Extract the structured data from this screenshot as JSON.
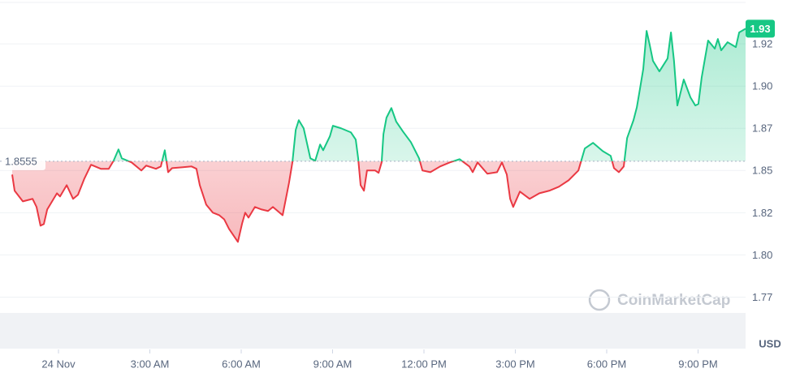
{
  "chart_data": {
    "type": "baseline-line",
    "baseline": 1.8555,
    "y_unit": "USD",
    "watermark": "CoinMarketCap",
    "up_color": "#16c784",
    "down_color": "#ea3943",
    "grid": true,
    "xlim": [
      -1.52,
      22.56
    ],
    "ylim": [
      1.744,
      1.951
    ],
    "xticks": [
      {
        "value": 0,
        "label": "24 Nov"
      },
      {
        "value": 3,
        "label": "3:00 AM"
      },
      {
        "value": 6,
        "label": "6:00 AM"
      },
      {
        "value": 9,
        "label": "9:00 AM"
      },
      {
        "value": 12,
        "label": "12:00 PM"
      },
      {
        "value": 15,
        "label": "3:00 PM"
      },
      {
        "value": 18,
        "label": "6:00 PM"
      },
      {
        "value": 21,
        "label": "9:00 PM"
      }
    ],
    "yticks": [
      {
        "value": 1.775,
        "label": "1.77"
      },
      {
        "value": 1.8,
        "label": "1.80"
      },
      {
        "value": 1.825,
        "label": "1.82"
      },
      1.85,
      {
        "value": 1.875,
        "label": "1.87"
      },
      {
        "value": 1.9,
        "label": "1.90"
      },
      {
        "value": 1.925,
        "label": "1.92"
      }
    ],
    "x": [
      -1.52,
      -1.44,
      -1.17,
      -0.85,
      -0.72,
      -0.59,
      -0.48,
      -0.37,
      -0.16,
      -0.05,
      0.05,
      0.27,
      0.48,
      0.64,
      0.85,
      1.07,
      1.39,
      1.65,
      1.81,
      1.97,
      2.08,
      2.4,
      2.72,
      2.88,
      3.2,
      3.36,
      3.49,
      3.6,
      3.73,
      4.05,
      4.37,
      4.53,
      4.64,
      4.85,
      5.07,
      5.28,
      5.44,
      5.6,
      5.89,
      6.03,
      6.13,
      6.24,
      6.45,
      6.67,
      6.88,
      7.04,
      7.36,
      7.57,
      7.68,
      7.79,
      7.89,
      8.05,
      8.27,
      8.43,
      8.59,
      8.69,
      8.91,
      9.01,
      9.28,
      9.6,
      9.76,
      9.84,
      9.92,
      10.03,
      10.13,
      10.4,
      10.51,
      10.61,
      10.67,
      10.77,
      10.93,
      11.09,
      11.31,
      11.57,
      11.84,
      11.95,
      12.21,
      12.53,
      12.85,
      13.17,
      13.49,
      13.6,
      13.76,
      14.08,
      14.4,
      14.56,
      14.72,
      14.83,
      14.93,
      15.15,
      15.47,
      15.79,
      16.11,
      16.43,
      16.75,
      17.07,
      17.28,
      17.55,
      17.87,
      18.13,
      18.24,
      18.4,
      18.56,
      18.67,
      18.88,
      18.99,
      19.09,
      19.2,
      19.31,
      19.41,
      19.52,
      19.73,
      20.0,
      20.11,
      20.21,
      20.32,
      20.53,
      20.75,
      20.91,
      21.01,
      21.12,
      21.33,
      21.55,
      21.65,
      21.76,
      21.97,
      22.24,
      22.35,
      22.56
    ],
    "values": [
      1.8476,
      1.838,
      1.8317,
      1.8332,
      1.8284,
      1.8173,
      1.8183,
      1.8269,
      1.8332,
      1.8365,
      1.8346,
      1.8413,
      1.8332,
      1.8356,
      1.8452,
      1.8534,
      1.851,
      1.851,
      1.8558,
      1.8625,
      1.8572,
      1.8548,
      1.85,
      1.8529,
      1.851,
      1.8524,
      1.862,
      1.849,
      1.8514,
      1.8519,
      1.8524,
      1.851,
      1.8413,
      1.8298,
      1.825,
      1.8235,
      1.8211,
      1.8154,
      1.8077,
      1.8187,
      1.825,
      1.8221,
      1.8284,
      1.8269,
      1.826,
      1.8284,
      1.8235,
      1.8428,
      1.8548,
      1.8741,
      1.8798,
      1.875,
      1.8572,
      1.8558,
      1.8654,
      1.862,
      1.8702,
      1.8765,
      1.875,
      1.8726,
      1.8683,
      1.8572,
      1.8413,
      1.838,
      1.85,
      1.85,
      1.8486,
      1.8548,
      1.8716,
      1.8813,
      1.887,
      1.8789,
      1.8731,
      1.8668,
      1.8572,
      1.85,
      1.849,
      1.8524,
      1.8548,
      1.8567,
      1.8524,
      1.849,
      1.8548,
      1.8481,
      1.849,
      1.8548,
      1.8476,
      1.8332,
      1.8284,
      1.8375,
      1.8332,
      1.8365,
      1.838,
      1.8404,
      1.8442,
      1.85,
      1.863,
      1.8664,
      1.8615,
      1.8587,
      1.8514,
      1.849,
      1.8524,
      1.8692,
      1.8798,
      1.8875,
      1.8981,
      1.9101,
      1.9327,
      1.9246,
      1.9149,
      1.9087,
      1.9164,
      1.9318,
      1.9149,
      1.8885,
      1.9039,
      1.8933,
      1.8885,
      1.8894,
      1.9053,
      1.927,
      1.9222,
      1.9279,
      1.9212,
      1.926,
      1.9231,
      1.9318,
      1.934
    ],
    "value_labels": [
      null,
      null,
      null,
      null,
      null,
      null,
      null,
      null,
      null,
      null,
      null,
      null,
      null,
      null,
      null,
      null,
      null,
      null,
      null,
      null,
      null,
      null,
      null,
      null,
      null,
      null,
      null,
      null,
      null,
      null,
      null,
      null,
      null,
      null,
      null,
      null,
      null,
      null,
      null,
      null,
      null,
      null,
      null,
      null,
      null,
      null,
      null,
      null,
      null,
      null,
      null,
      null,
      null,
      null,
      null,
      null,
      null,
      null,
      null,
      null,
      null,
      null,
      null,
      null,
      null,
      null,
      null,
      null,
      null,
      null,
      null,
      null,
      null,
      null,
      null,
      null,
      null,
      null,
      null,
      null,
      null,
      null,
      null,
      null,
      null,
      null,
      null,
      null,
      null,
      null,
      null,
      null,
      null,
      null,
      null,
      null,
      null,
      null,
      null,
      null,
      null,
      null,
      null,
      null,
      null,
      null,
      null,
      null,
      null,
      null,
      null,
      null,
      null,
      null,
      null,
      null,
      null,
      null,
      null,
      null,
      null,
      null,
      null,
      null,
      null,
      null,
      null,
      null,
      "1.93"
    ]
  }
}
